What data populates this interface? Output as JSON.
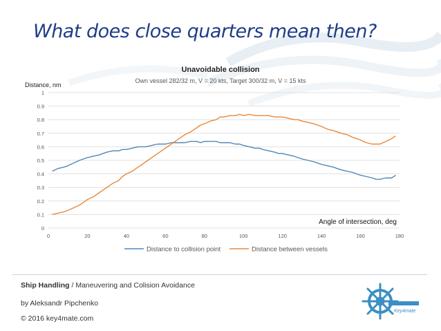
{
  "slide": {
    "title": "What does close quarters mean then?"
  },
  "footer": {
    "course_bold": "Ship Handling",
    "course_rest": " / Maneuvering and Colision  Avoidance",
    "author": "by Aleksandr Pipchenko",
    "copyright": "© 2016 key4mate.com",
    "logo_text": "Key4mate"
  },
  "colors": {
    "series1": "#4f86b8",
    "series2": "#e8883a",
    "title_blue": "#1f3c88",
    "grid": "#d9d9d9"
  },
  "chart_data": {
    "type": "line",
    "title": "Unavoidable collision",
    "subtitle": "Own vessel 282/32 m, V = 20 kts, Target 300/32 m, V = 15 kts",
    "ylabel": "Distance, nm",
    "xlabel": "Angle of intersection, deg",
    "xlim": [
      0,
      180
    ],
    "ylim": [
      0,
      1
    ],
    "xticks": [
      "0",
      "20",
      "40",
      "60",
      "80",
      "100",
      "120",
      "140",
      "160",
      "180"
    ],
    "yticks": [
      "0",
      "0.1",
      "0.2",
      "0.3",
      "0.4",
      "0.5",
      "0.6",
      "0.7",
      "0.8",
      "0.9",
      "1"
    ],
    "grid": true,
    "legend_position": "bottom",
    "x": [
      2,
      5,
      8,
      10,
      13,
      16,
      18,
      20,
      23,
      26,
      28,
      30,
      33,
      36,
      38,
      40,
      43,
      46,
      48,
      50,
      53,
      56,
      58,
      60,
      63,
      66,
      68,
      70,
      73,
      76,
      78,
      80,
      83,
      86,
      88,
      90,
      93,
      96,
      98,
      100,
      103,
      106,
      108,
      110,
      113,
      116,
      118,
      120,
      123,
      126,
      128,
      130,
      133,
      136,
      138,
      140,
      143,
      146,
      148,
      150,
      153,
      156,
      158,
      160,
      163,
      166,
      168,
      170,
      173,
      176,
      178
    ],
    "series": [
      {
        "name": "Distance to collision point",
        "values": [
          0.42,
          0.44,
          0.45,
          0.46,
          0.48,
          0.5,
          0.51,
          0.52,
          0.53,
          0.54,
          0.55,
          0.56,
          0.57,
          0.57,
          0.58,
          0.58,
          0.59,
          0.6,
          0.6,
          0.6,
          0.61,
          0.62,
          0.62,
          0.62,
          0.63,
          0.63,
          0.63,
          0.63,
          0.64,
          0.64,
          0.63,
          0.64,
          0.64,
          0.64,
          0.63,
          0.63,
          0.63,
          0.62,
          0.62,
          0.61,
          0.6,
          0.59,
          0.59,
          0.58,
          0.57,
          0.56,
          0.55,
          0.55,
          0.54,
          0.53,
          0.52,
          0.51,
          0.5,
          0.49,
          0.48,
          0.47,
          0.46,
          0.45,
          0.44,
          0.43,
          0.42,
          0.41,
          0.4,
          0.39,
          0.38,
          0.37,
          0.36,
          0.36,
          0.37,
          0.37,
          0.39
        ]
      },
      {
        "name": "Distance between vessels",
        "values": [
          0.1,
          0.11,
          0.12,
          0.13,
          0.15,
          0.17,
          0.19,
          0.21,
          0.23,
          0.26,
          0.28,
          0.3,
          0.33,
          0.35,
          0.38,
          0.4,
          0.42,
          0.45,
          0.47,
          0.49,
          0.52,
          0.55,
          0.57,
          0.59,
          0.62,
          0.65,
          0.67,
          0.69,
          0.71,
          0.74,
          0.76,
          0.77,
          0.79,
          0.8,
          0.82,
          0.82,
          0.83,
          0.83,
          0.84,
          0.83,
          0.84,
          0.83,
          0.83,
          0.83,
          0.83,
          0.82,
          0.82,
          0.82,
          0.81,
          0.8,
          0.8,
          0.79,
          0.78,
          0.77,
          0.76,
          0.75,
          0.73,
          0.72,
          0.71,
          0.7,
          0.69,
          0.67,
          0.66,
          0.65,
          0.63,
          0.62,
          0.62,
          0.62,
          0.64,
          0.66,
          0.68
        ]
      }
    ]
  }
}
